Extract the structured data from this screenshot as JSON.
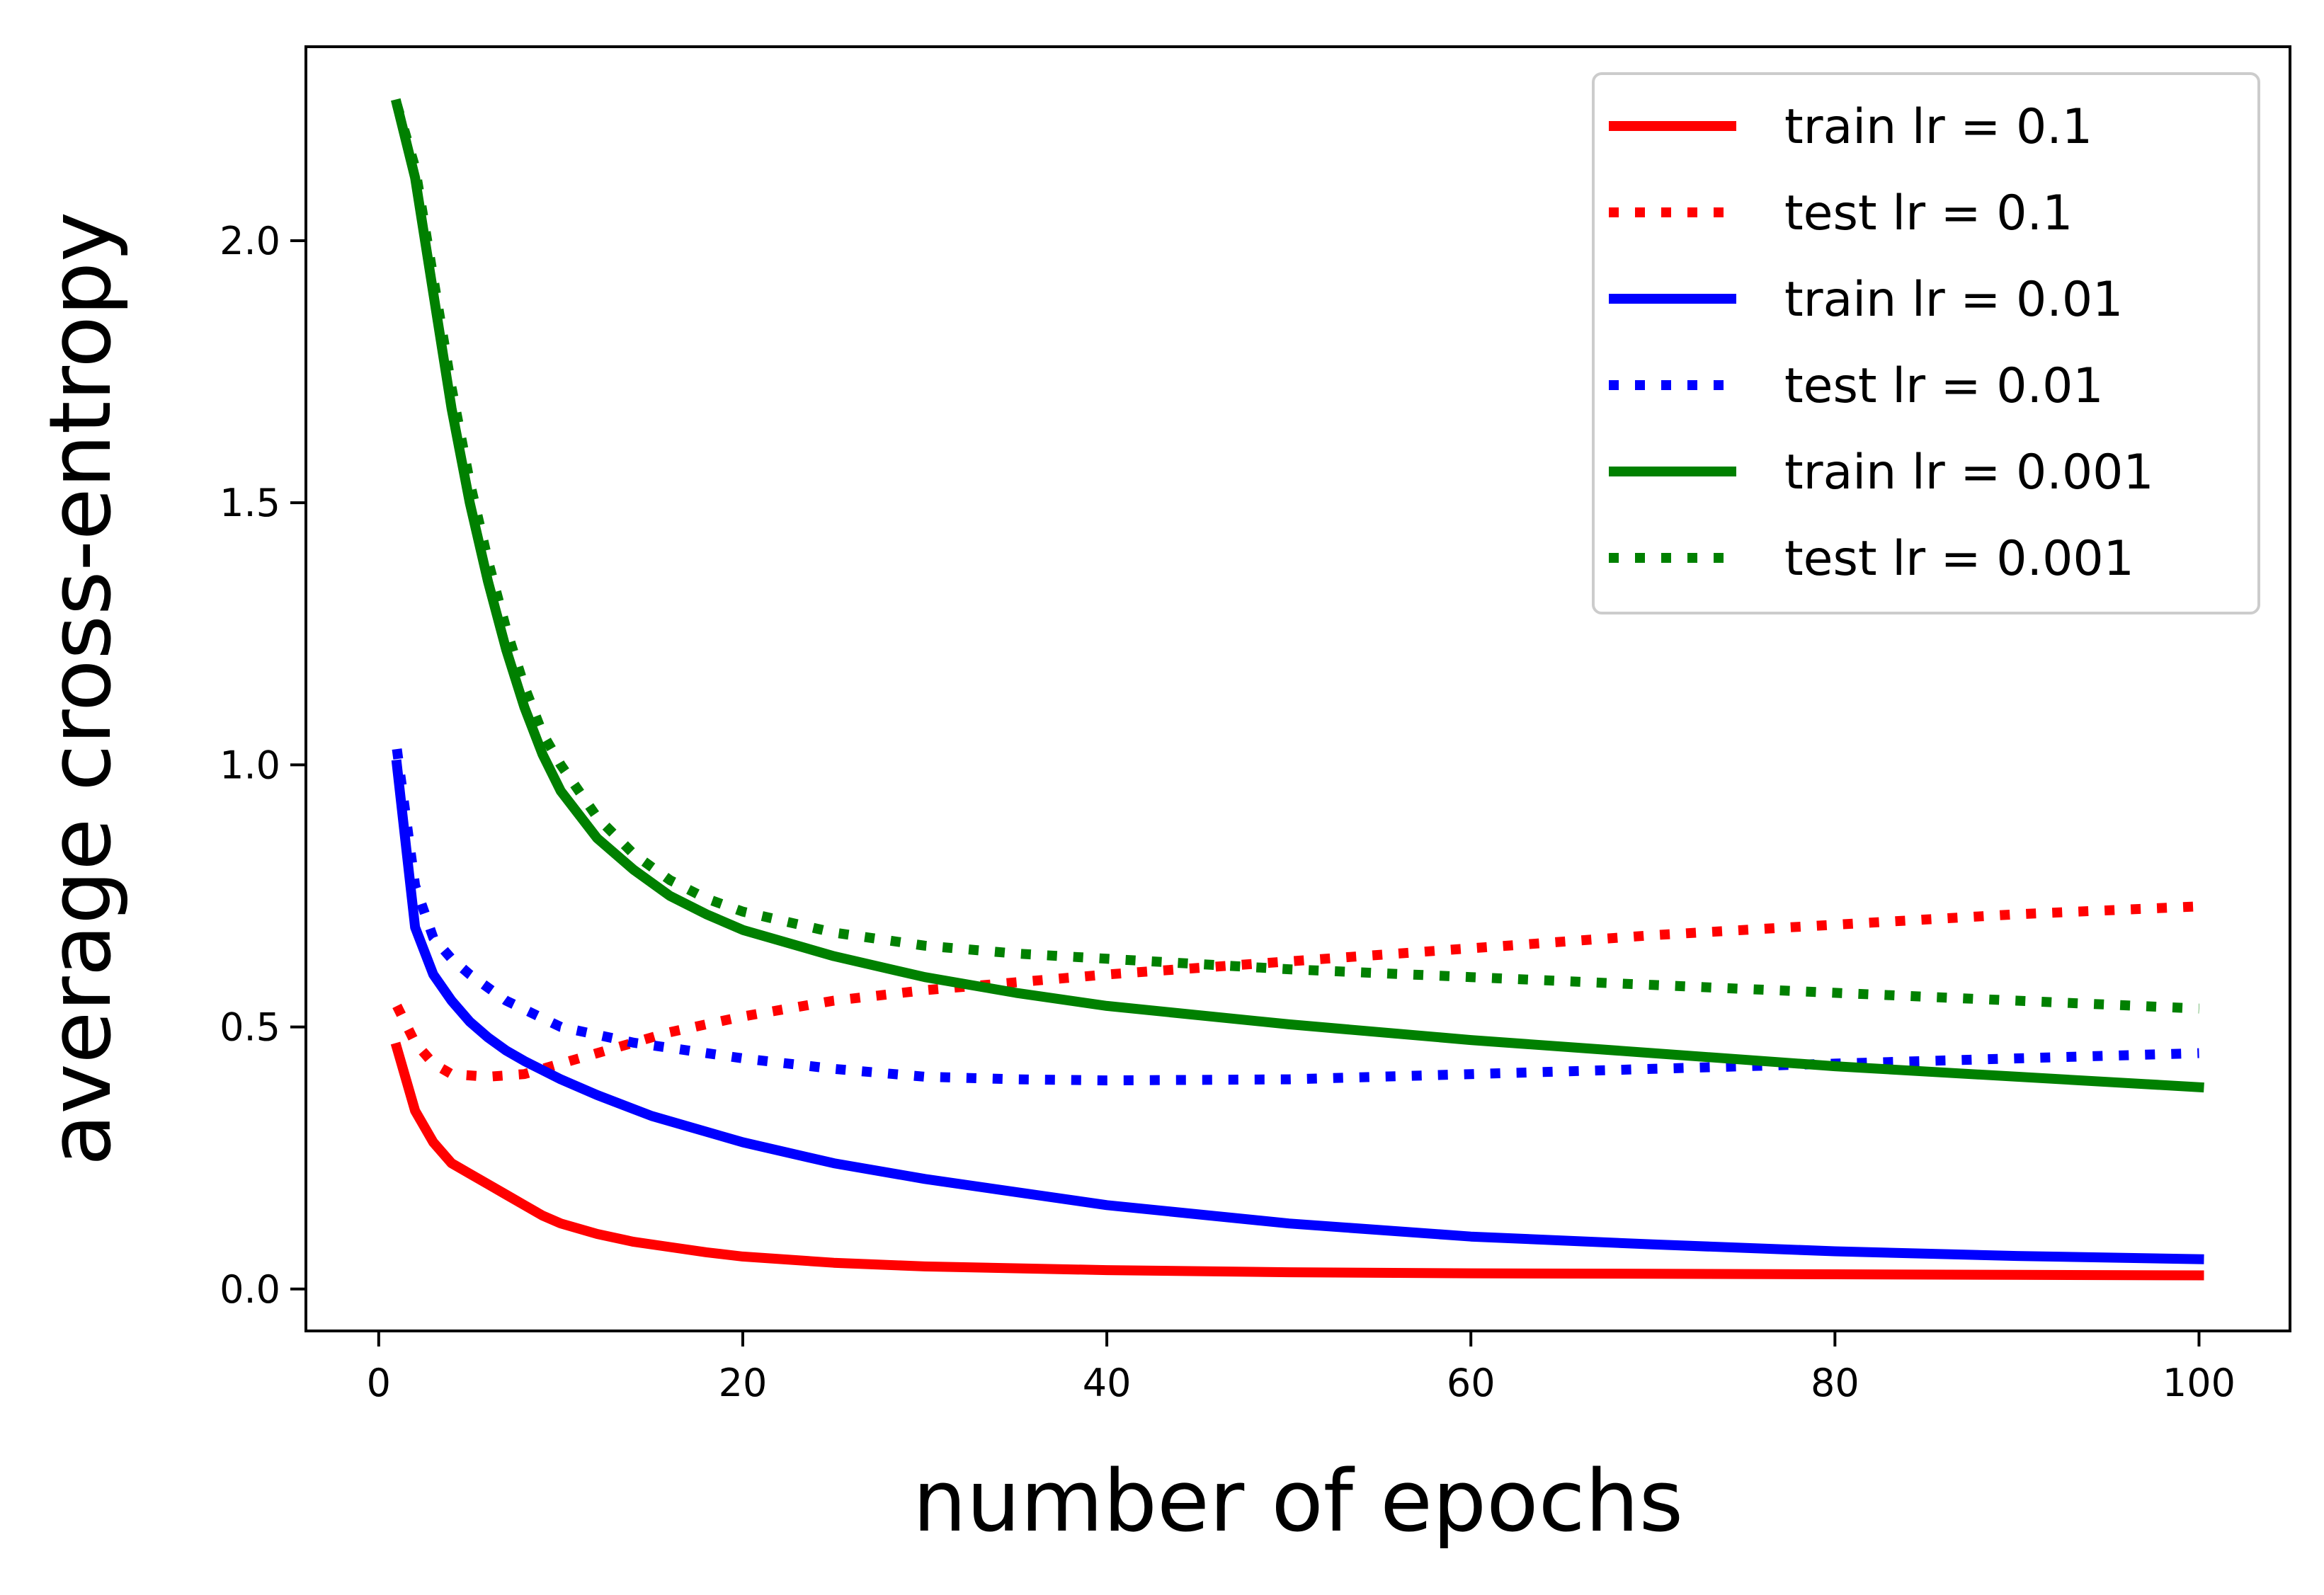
{
  "chart_data": {
    "type": "line",
    "xlabel": "number of epochs",
    "ylabel": "average cross-entropy",
    "xlim": [
      -4,
      105
    ],
    "ylim": [
      -0.08,
      2.37
    ],
    "xticks": [
      0,
      20,
      40,
      60,
      80,
      100
    ],
    "xtick_labels": [
      "0",
      "20",
      "40",
      "60",
      "80",
      "100"
    ],
    "yticks": [
      0.0,
      0.5,
      1.0,
      1.5,
      2.0
    ],
    "ytick_labels": [
      "0.0",
      "0.5",
      "1.0",
      "1.5",
      "2.0"
    ],
    "grid": false,
    "legend_position": "top-right",
    "series": [
      {
        "name": "train lr = 0.1",
        "color": "#ff0000",
        "style": "solid",
        "points": [
          [
            1,
            0.46
          ],
          [
            2,
            0.34
          ],
          [
            3,
            0.28
          ],
          [
            4,
            0.24
          ],
          [
            5,
            0.22
          ],
          [
            6,
            0.2
          ],
          [
            7,
            0.18
          ],
          [
            8,
            0.16
          ],
          [
            9,
            0.14
          ],
          [
            10,
            0.125
          ],
          [
            12,
            0.105
          ],
          [
            14,
            0.09
          ],
          [
            16,
            0.08
          ],
          [
            18,
            0.07
          ],
          [
            20,
            0.062
          ],
          [
            25,
            0.05
          ],
          [
            30,
            0.043
          ],
          [
            40,
            0.036
          ],
          [
            50,
            0.032
          ],
          [
            60,
            0.03
          ],
          [
            70,
            0.029
          ],
          [
            80,
            0.028
          ],
          [
            90,
            0.027
          ],
          [
            100,
            0.026
          ]
        ]
      },
      {
        "name": "test lr = 0.1",
        "color": "#ff0000",
        "style": "dotted",
        "points": [
          [
            1,
            0.54
          ],
          [
            2,
            0.47
          ],
          [
            3,
            0.43
          ],
          [
            4,
            0.41
          ],
          [
            6,
            0.405
          ],
          [
            8,
            0.41
          ],
          [
            10,
            0.43
          ],
          [
            12,
            0.45
          ],
          [
            14,
            0.47
          ],
          [
            16,
            0.49
          ],
          [
            20,
            0.52
          ],
          [
            25,
            0.55
          ],
          [
            30,
            0.57
          ],
          [
            40,
            0.6
          ],
          [
            50,
            0.625
          ],
          [
            60,
            0.65
          ],
          [
            70,
            0.675
          ],
          [
            80,
            0.695
          ],
          [
            90,
            0.715
          ],
          [
            100,
            0.73
          ]
        ]
      },
      {
        "name": "train lr = 0.01",
        "color": "#0000ff",
        "style": "solid",
        "points": [
          [
            1,
            1.0
          ],
          [
            2,
            0.69
          ],
          [
            3,
            0.6
          ],
          [
            4,
            0.55
          ],
          [
            5,
            0.51
          ],
          [
            6,
            0.48
          ],
          [
            7,
            0.455
          ],
          [
            8,
            0.435
          ],
          [
            10,
            0.4
          ],
          [
            12,
            0.37
          ],
          [
            15,
            0.33
          ],
          [
            20,
            0.28
          ],
          [
            25,
            0.24
          ],
          [
            30,
            0.21
          ],
          [
            40,
            0.16
          ],
          [
            50,
            0.125
          ],
          [
            60,
            0.1
          ],
          [
            70,
            0.085
          ],
          [
            80,
            0.072
          ],
          [
            90,
            0.063
          ],
          [
            100,
            0.057
          ]
        ]
      },
      {
        "name": "test lr = 0.01",
        "color": "#0000ff",
        "style": "dotted",
        "points": [
          [
            1,
            1.03
          ],
          [
            2,
            0.77
          ],
          [
            3,
            0.67
          ],
          [
            4,
            0.63
          ],
          [
            5,
            0.6
          ],
          [
            7,
            0.55
          ],
          [
            10,
            0.5
          ],
          [
            14,
            0.47
          ],
          [
            20,
            0.44
          ],
          [
            25,
            0.42
          ],
          [
            30,
            0.405
          ],
          [
            35,
            0.4
          ],
          [
            40,
            0.398
          ],
          [
            50,
            0.4
          ],
          [
            60,
            0.41
          ],
          [
            70,
            0.42
          ],
          [
            80,
            0.43
          ],
          [
            90,
            0.44
          ],
          [
            100,
            0.45
          ]
        ]
      },
      {
        "name": "train lr = 0.001",
        "color": "#008000",
        "style": "solid",
        "points": [
          [
            1,
            2.26
          ],
          [
            2,
            2.12
          ],
          [
            3,
            1.9
          ],
          [
            4,
            1.68
          ],
          [
            5,
            1.5
          ],
          [
            6,
            1.35
          ],
          [
            7,
            1.22
          ],
          [
            8,
            1.11
          ],
          [
            9,
            1.02
          ],
          [
            10,
            0.95
          ],
          [
            12,
            0.86
          ],
          [
            14,
            0.8
          ],
          [
            16,
            0.75
          ],
          [
            18,
            0.715
          ],
          [
            20,
            0.685
          ],
          [
            25,
            0.635
          ],
          [
            30,
            0.595
          ],
          [
            35,
            0.565
          ],
          [
            40,
            0.54
          ],
          [
            50,
            0.505
          ],
          [
            60,
            0.475
          ],
          [
            70,
            0.45
          ],
          [
            80,
            0.425
          ],
          [
            90,
            0.405
          ],
          [
            100,
            0.385
          ]
        ]
      },
      {
        "name": "test lr = 0.001",
        "color": "#008000",
        "style": "dotted",
        "points": [
          [
            1,
            2.26
          ],
          [
            2,
            2.14
          ],
          [
            3,
            1.93
          ],
          [
            4,
            1.72
          ],
          [
            5,
            1.54
          ],
          [
            6,
            1.39
          ],
          [
            7,
            1.26
          ],
          [
            8,
            1.15
          ],
          [
            9,
            1.06
          ],
          [
            10,
            1.0
          ],
          [
            12,
            0.9
          ],
          [
            14,
            0.83
          ],
          [
            16,
            0.78
          ],
          [
            18,
            0.745
          ],
          [
            20,
            0.72
          ],
          [
            25,
            0.68
          ],
          [
            30,
            0.655
          ],
          [
            35,
            0.64
          ],
          [
            40,
            0.63
          ],
          [
            50,
            0.61
          ],
          [
            60,
            0.595
          ],
          [
            70,
            0.58
          ],
          [
            80,
            0.565
          ],
          [
            90,
            0.55
          ],
          [
            100,
            0.535
          ]
        ]
      }
    ]
  }
}
